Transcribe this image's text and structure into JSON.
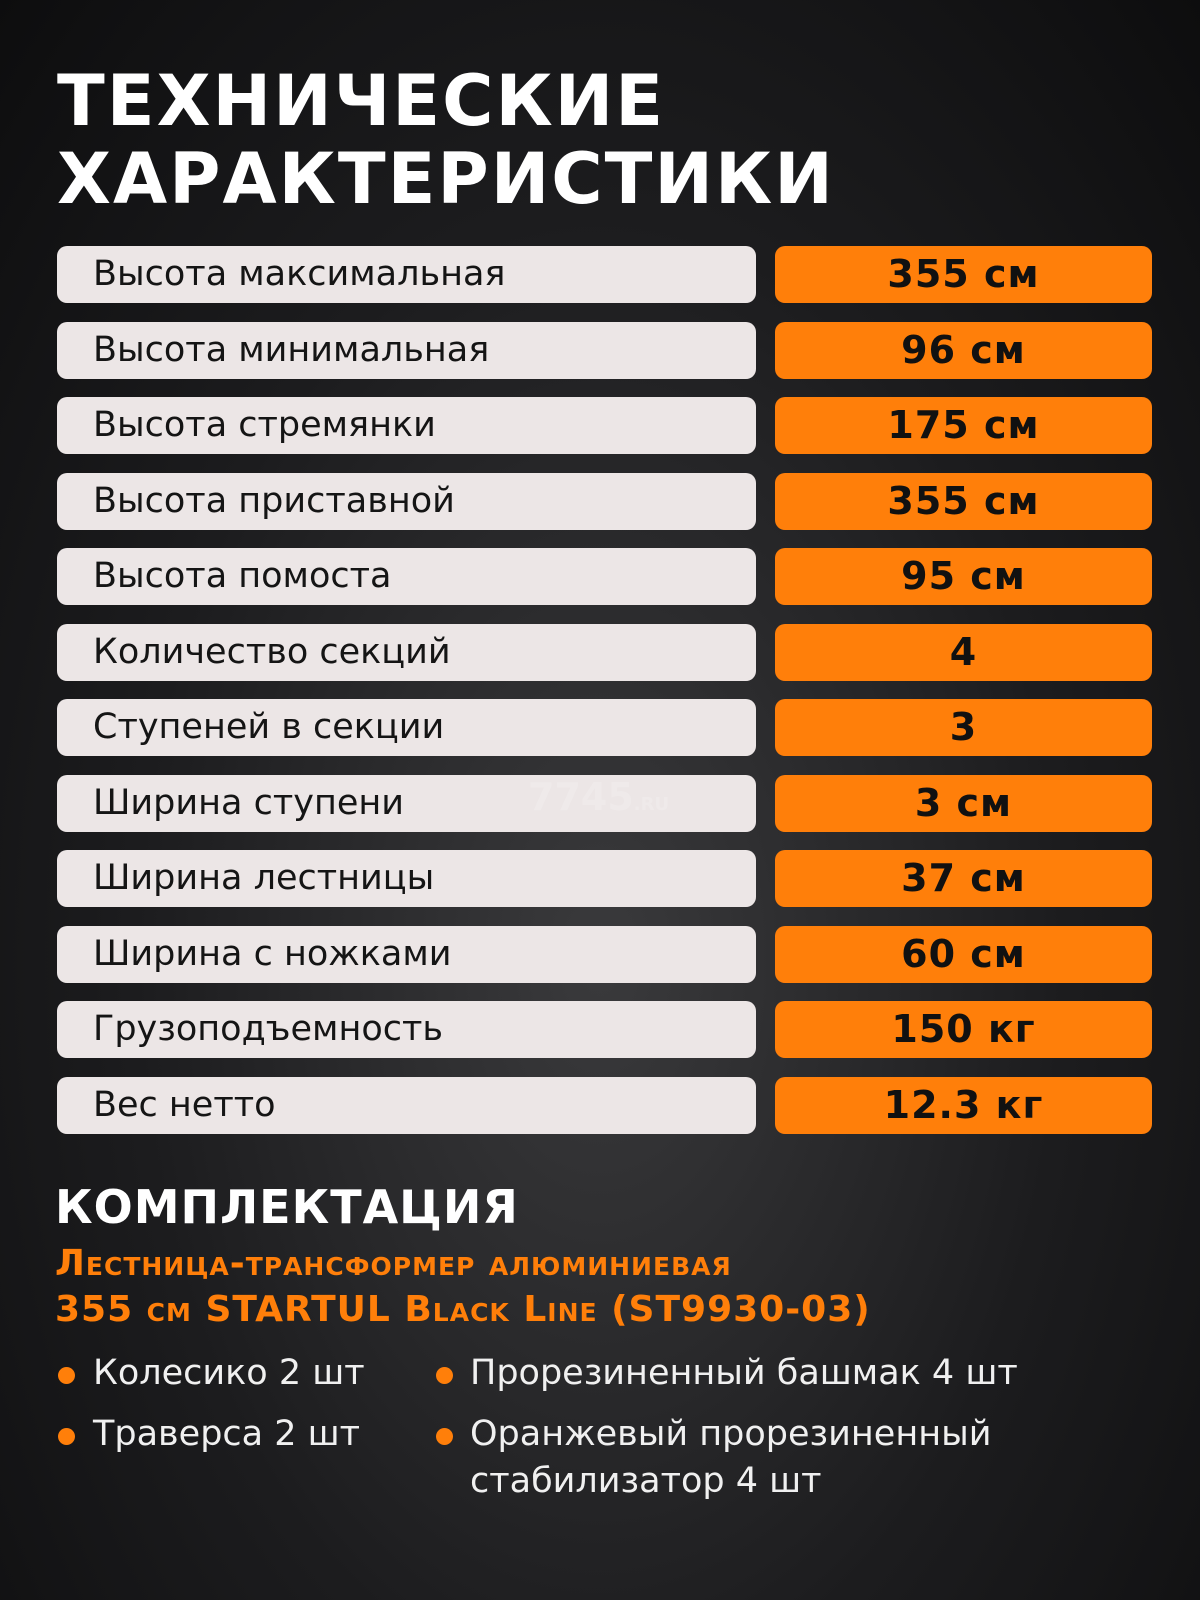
{
  "header": {
    "title_lines": [
      "ТЕХНИЧЕСКИЕ",
      "ХАРАКТЕРИСТИКИ"
    ]
  },
  "specs": [
    {
      "label": "Высота максимальная",
      "value": "355 см"
    },
    {
      "label": "Высота минимальная",
      "value": "96 см"
    },
    {
      "label": "Высота стремянки",
      "value": "175 см"
    },
    {
      "label": "Высота приставной",
      "value": "355 см"
    },
    {
      "label": "Высота помоста",
      "value": "95 см"
    },
    {
      "label": "Количество секций",
      "value": "4"
    },
    {
      "label": "Ступеней в секции",
      "value": "3"
    },
    {
      "label": "Ширина ступени",
      "value": "3 см"
    },
    {
      "label": "Ширина лестницы",
      "value": "37 см"
    },
    {
      "label": "Ширина с ножками",
      "value": "60 см"
    },
    {
      "label": "Грузоподъемность",
      "value": "150 кг"
    },
    {
      "label": "Вес нетто",
      "value": "12.3 кг"
    }
  ],
  "watermark": {
    "main": "7745",
    "suffix": ".RU"
  },
  "kit": {
    "title": "КОМПЛЕКТАЦИЯ",
    "product_lines": [
      "Лестница-трансформер алюминиевая",
      "355 см STARTUL Black Line (ST9930-03)"
    ],
    "items": [
      "Колесико 2 шт",
      "Прорезиненный башмак 4 шт",
      "Траверса 2 шт",
      "Оранжевый прорезиненный стабилизатор 4 шт"
    ]
  }
}
